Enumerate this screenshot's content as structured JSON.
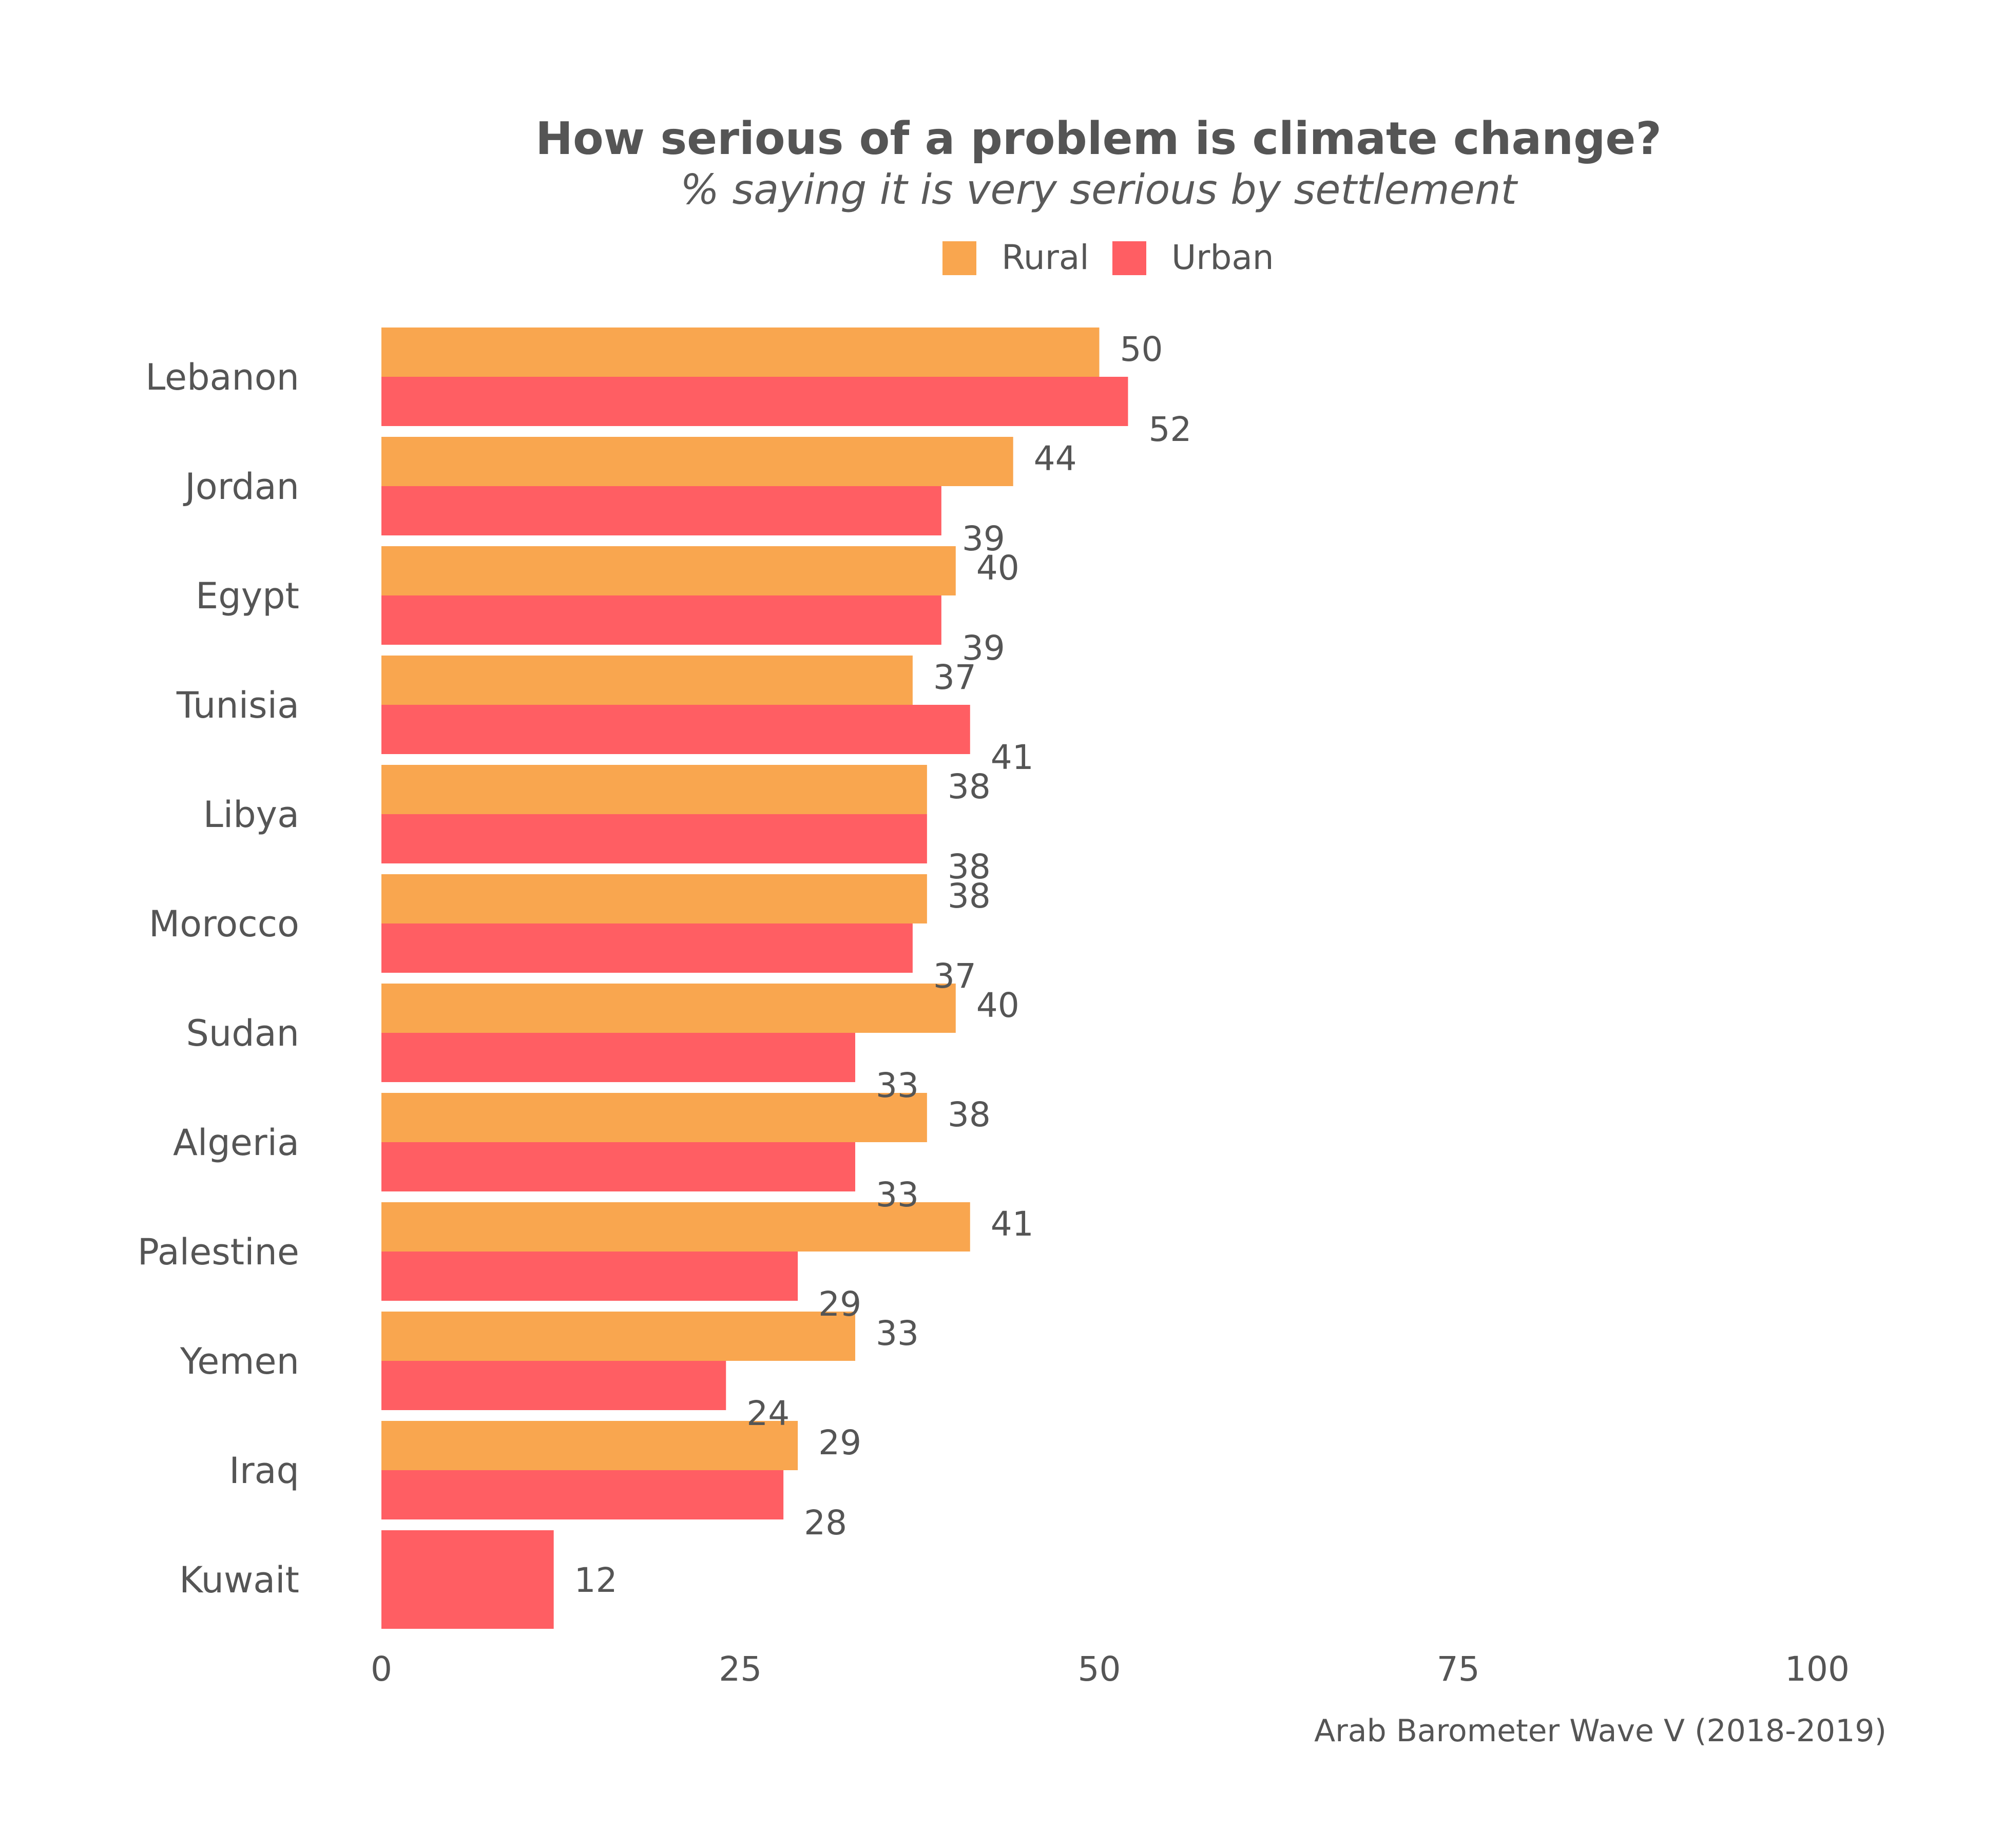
{
  "chart_data": {
    "type": "bar",
    "orientation": "horizontal",
    "title": "How serious of a problem is climate change?",
    "subtitle": "% saying it is very serious by settlement",
    "caption": "Arab Barometer Wave V (2018-2019)",
    "categories": [
      "Lebanon",
      "Jordan",
      "Egypt",
      "Tunisia",
      "Libya",
      "Morocco",
      "Sudan",
      "Algeria",
      "Palestine",
      "Yemen",
      "Iraq",
      "Kuwait"
    ],
    "series": [
      {
        "name": "Rural",
        "color": "#F9A64F",
        "values": [
          50,
          44,
          40,
          37,
          38,
          38,
          40,
          38,
          41,
          33,
          29,
          null
        ]
      },
      {
        "name": "Urban",
        "color": "#FF5E63",
        "values": [
          52,
          39,
          39,
          41,
          38,
          37,
          33,
          33,
          29,
          24,
          28,
          12
        ]
      }
    ],
    "xlim": [
      0,
      100
    ],
    "xticks": [
      0,
      25,
      50,
      75,
      100
    ],
    "grid": false,
    "legend_position": "top"
  }
}
